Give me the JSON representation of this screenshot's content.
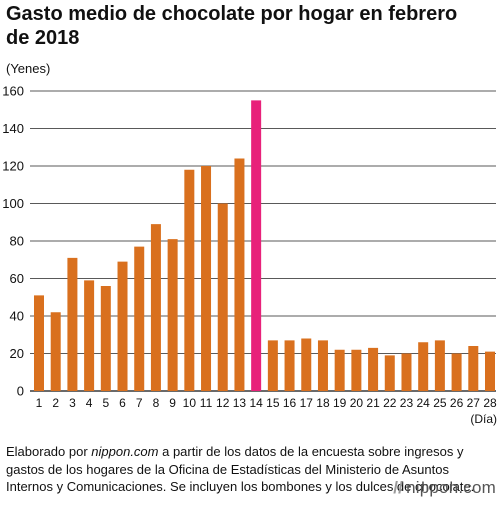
{
  "chart_data": {
    "type": "bar",
    "title": "Gasto medio de chocolate por hogar en febrero de 2018",
    "ylabel": "(Yenes)",
    "xlabel": "(Día)",
    "ylim": [
      0,
      160
    ],
    "yticks": [
      0,
      20,
      40,
      60,
      80,
      100,
      120,
      140,
      160
    ],
    "grid": true,
    "bar_color": "#d9701e",
    "highlight_color": "#e8217a",
    "highlight_index": 13,
    "categories": [
      "1",
      "2",
      "3",
      "4",
      "5",
      "6",
      "7",
      "8",
      "9",
      "10",
      "11",
      "12",
      "13",
      "14",
      "15",
      "16",
      "17",
      "18",
      "19",
      "20",
      "21",
      "22",
      "23",
      "24",
      "25",
      "26",
      "27",
      "28"
    ],
    "values": [
      51,
      42,
      71,
      59,
      56,
      69,
      77,
      89,
      81,
      118,
      120,
      100,
      124,
      155,
      27,
      27,
      28,
      27,
      22,
      22,
      23,
      19,
      20,
      26,
      27,
      20,
      24,
      21
    ]
  },
  "footer": {
    "prefix": "Elaborado por ",
    "source": "nippon.com",
    "text": " a partir de los datos de la encuesta sobre ingresos y gastos de los hogares de la Oficina de Estadísticas del Ministerio de Asuntos Internos y Comunicaciones. Se incluyen los bombones y los dulces de chocolate."
  },
  "logo": {
    "slashes": "//",
    "text": "nippon.com"
  }
}
